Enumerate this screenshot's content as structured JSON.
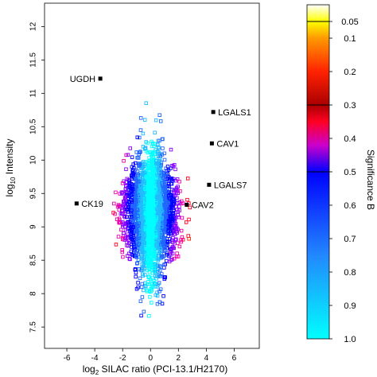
{
  "chart_data": {
    "type": "scatter",
    "title": "",
    "xlabel_main": "log",
    "xlabel_sub": "2",
    "xlabel_rest": " SILAC ratio (PCI-13.1/H2170)",
    "ylabel_main": "log",
    "ylabel_sub": "10",
    "ylabel_rest": " Intensity",
    "xlim": [
      -7.6,
      7.8
    ],
    "ylim": [
      7.18,
      12.35
    ],
    "xticks": [
      -6,
      -4,
      -2,
      0,
      2,
      4,
      6
    ],
    "yticks": [
      7.5,
      8,
      8.5,
      9,
      9.5,
      10,
      10.5,
      11,
      11.5,
      12
    ],
    "ytick_labels": [
      "7.5",
      "8",
      "8.5",
      "9",
      "9.5",
      "10",
      "10.5",
      "11",
      "11.5",
      "12"
    ],
    "grid": false,
    "marker": "open-square",
    "labeled_points": [
      {
        "label": "UGDH",
        "x": -3.6,
        "y": 11.22,
        "label_side": "left"
      },
      {
        "label": "LGALS1",
        "x": 4.5,
        "y": 10.72,
        "label_side": "right"
      },
      {
        "label": "CAV1",
        "x": 4.4,
        "y": 10.25,
        "label_side": "right"
      },
      {
        "label": "LGALS7",
        "x": 4.2,
        "y": 9.63,
        "label_side": "right"
      },
      {
        "label": "CAV2",
        "x": 2.6,
        "y": 9.33,
        "label_side": "right"
      },
      {
        "label": "CK19",
        "x": -5.3,
        "y": 9.35,
        "label_side": "right"
      }
    ],
    "significance_scale": {
      "label": "Significance B",
      "ticks": [
        0.05,
        0.1,
        0.2,
        0.3,
        0.4,
        0.5,
        0.6,
        0.7,
        0.8,
        0.9,
        1.0
      ],
      "tick_labels": [
        "0.05",
        "0.1",
        "0.2",
        "0.3",
        "0.4",
        "0.5",
        "0.6",
        "0.7",
        "0.8",
        "0.9",
        "1.0"
      ],
      "color_stops": [
        {
          "p": 0.0,
          "color": "#ffffff"
        },
        {
          "p": 0.05,
          "color": "#ffff00"
        },
        {
          "p": 0.1,
          "color": "#ff9900"
        },
        {
          "p": 0.2,
          "color": "#ff2200"
        },
        {
          "p": 0.3,
          "color": "#aa0000"
        },
        {
          "p": 0.35,
          "color": "#ff0022"
        },
        {
          "p": 0.42,
          "color": "#cc00cc"
        },
        {
          "p": 0.5,
          "color": "#0000ff"
        },
        {
          "p": 0.75,
          "color": "#2288ff"
        },
        {
          "p": 1.0,
          "color": "#00ffff"
        }
      ],
      "black_lines_at": [
        0.05,
        0.3,
        0.5
      ]
    },
    "point_colors": [
      "#00ffff",
      "#22bbff",
      "#2266ff",
      "#0000ff",
      "#8800ff",
      "#ee00aa",
      "#ff0022",
      "#ff2200",
      "#ff7700",
      "#ffbb00",
      "#ddff00",
      "#66ee22",
      "#22dd22"
    ]
  }
}
